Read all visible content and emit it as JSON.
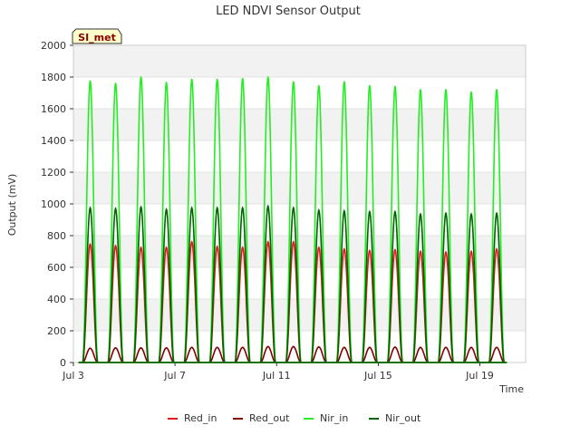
{
  "chart_data": {
    "type": "line",
    "title": "LED NDVI Sensor Output",
    "xlabel": "Time",
    "ylabel": "Output (mV)",
    "site_label": "SI_met",
    "ylim": [
      0,
      2000
    ],
    "yticks": [
      0,
      200,
      400,
      600,
      800,
      1000,
      1200,
      1400,
      1600,
      1800,
      2000
    ],
    "xlim_days": [
      3.0,
      20.8
    ],
    "xticks": [
      {
        "day": 3,
        "label": "Jul 3"
      },
      {
        "day": 7,
        "label": "Jul 7"
      },
      {
        "day": 11,
        "label": "Jul 11"
      },
      {
        "day": 15,
        "label": "Jul 15"
      },
      {
        "day": 19,
        "label": "Jul 19"
      }
    ],
    "peak_days": [
      3.66,
      4.66,
      5.66,
      6.66,
      7.66,
      8.66,
      9.66,
      10.66,
      11.66,
      12.66,
      13.66,
      14.66,
      15.66,
      16.66,
      17.66,
      18.66,
      19.66
    ],
    "series": [
      {
        "name": "Red_in",
        "color": "#e31a1c",
        "values": [
          745,
          735,
          725,
          725,
          760,
          730,
          725,
          760,
          760,
          725,
          715,
          705,
          710,
          700,
          695,
          700,
          715
        ]
      },
      {
        "name": "Red_out",
        "color": "#800000",
        "values": [
          90,
          92,
          92,
          92,
          95,
          95,
          95,
          100,
          100,
          98,
          95,
          95,
          97,
          95,
          95,
          95,
          95
        ]
      },
      {
        "name": "Nir_in",
        "color": "#22ee22",
        "values": [
          1775,
          1760,
          1800,
          1765,
          1785,
          1785,
          1790,
          1800,
          1770,
          1745,
          1770,
          1745,
          1740,
          1720,
          1720,
          1705,
          1720
        ]
      },
      {
        "name": "Nir_out",
        "color": "#006400",
        "values": [
          975,
          970,
          980,
          965,
          975,
          975,
          975,
          985,
          975,
          960,
          955,
          950,
          950,
          935,
          940,
          935,
          940
        ]
      }
    ]
  }
}
